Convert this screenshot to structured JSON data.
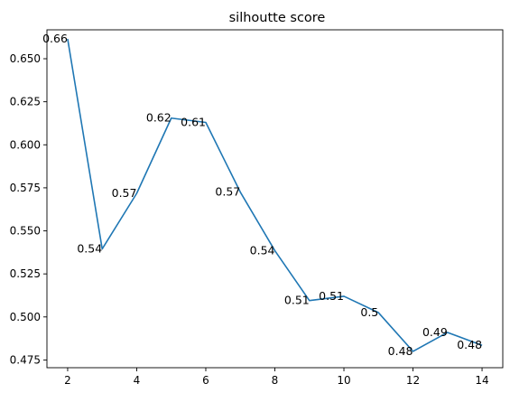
{
  "chart_data": {
    "type": "line",
    "title": "silhoutte score",
    "xlabel": "",
    "ylabel": "",
    "x": [
      2,
      3,
      4,
      5,
      6,
      7,
      8,
      9,
      10,
      11,
      12,
      13,
      14
    ],
    "series": [
      {
        "values": [
          0.6615,
          0.5395,
          0.5718,
          0.6155,
          0.613,
          0.5725,
          0.5385,
          0.5095,
          0.512,
          0.5025,
          0.48,
          0.491,
          0.4835
        ],
        "labels": [
          "0.66",
          "0.54",
          "0.57",
          "0.62",
          "0.61",
          "0.57",
          "0.54",
          "0.51",
          "0.51",
          "0.5",
          "0.48",
          "0.49",
          "0.48"
        ],
        "color": "#1f77b4"
      }
    ],
    "xlim": [
      1.4,
      14.6
    ],
    "ylim": [
      0.4705,
      0.6668
    ],
    "xticks": [
      2,
      4,
      6,
      8,
      10,
      12,
      14
    ],
    "xtick_labels": [
      "2",
      "4",
      "6",
      "8",
      "10",
      "12",
      "14"
    ],
    "yticks": [
      0.475,
      0.5,
      0.525,
      0.55,
      0.575,
      0.6,
      0.625,
      0.65
    ],
    "ytick_labels": [
      "0.475",
      "0.500",
      "0.525",
      "0.550",
      "0.575",
      "0.600",
      "0.625",
      "0.650"
    ],
    "grid": false,
    "legend": "none"
  }
}
